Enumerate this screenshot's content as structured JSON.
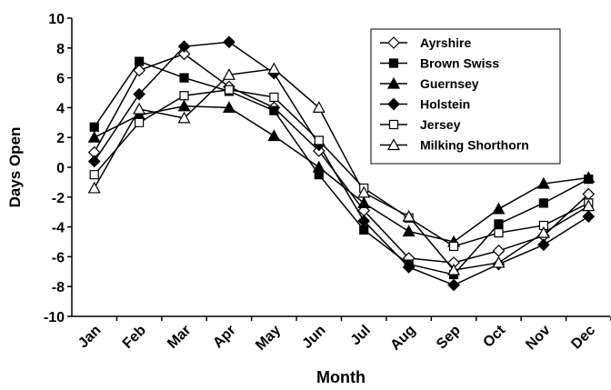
{
  "chart_data": {
    "type": "line",
    "xlabel": "Month",
    "ylabel": "Days Open",
    "categories": [
      "Jan",
      "Feb",
      "Mar",
      "Apr",
      "May",
      "Jun",
      "Jul",
      "Aug",
      "Sep",
      "Oct",
      "Nov",
      "Dec"
    ],
    "series": [
      {
        "name": "Ayrshire",
        "color": "#000000",
        "marker": "diamond",
        "filled": false,
        "values": [
          1.0,
          6.5,
          7.6,
          5.4,
          4.0,
          1.1,
          -2.9,
          -6.1,
          -6.4,
          -5.6,
          -4.6,
          -1.8
        ]
      },
      {
        "name": "Brown Swiss",
        "color": "#000000",
        "marker": "square",
        "filled": true,
        "values": [
          2.7,
          7.1,
          6.0,
          5.1,
          3.8,
          -0.5,
          -4.2,
          -6.5,
          -7.2,
          -3.8,
          -2.4,
          -0.8
        ]
      },
      {
        "name": "Guernsey",
        "color": "#000000",
        "marker": "triangle",
        "filled": true,
        "values": [
          2.0,
          3.5,
          4.1,
          4.0,
          2.1,
          0.0,
          -2.4,
          -4.3,
          -5.0,
          -2.8,
          -1.1,
          -0.7
        ]
      },
      {
        "name": "Holstein",
        "color": "#000000",
        "marker": "diamond",
        "filled": true,
        "values": [
          0.4,
          4.9,
          8.1,
          8.4,
          6.3,
          1.5,
          -3.6,
          -6.7,
          -7.9,
          -6.5,
          -5.2,
          -3.3
        ]
      },
      {
        "name": "Jersey",
        "color": "#000000",
        "marker": "square",
        "filled": false,
        "values": [
          -0.5,
          3.0,
          4.8,
          5.2,
          4.7,
          1.8,
          -1.4,
          -3.4,
          -5.3,
          -4.4,
          -3.9,
          -2.4
        ]
      },
      {
        "name": "Milking Shorthorn",
        "color": "#000000",
        "marker": "triangle",
        "filled": false,
        "values": [
          -1.4,
          3.9,
          3.3,
          6.2,
          6.6,
          4.0,
          -1.7,
          -3.3,
          -6.9,
          -6.4,
          -4.4,
          -2.6
        ]
      }
    ],
    "ylim": [
      -10,
      10
    ],
    "yticks": [
      -10,
      -8,
      -6,
      -4,
      -2,
      0,
      2,
      4,
      6,
      8,
      10
    ]
  }
}
